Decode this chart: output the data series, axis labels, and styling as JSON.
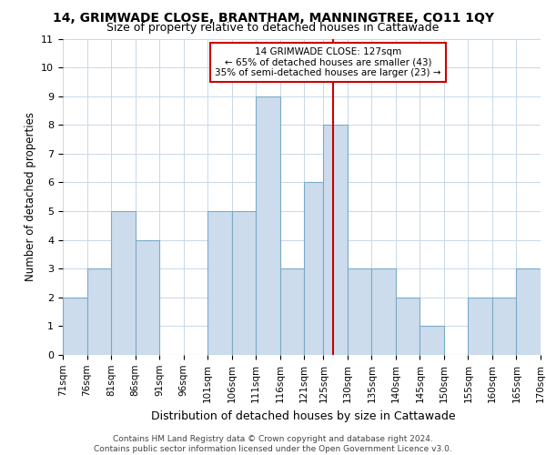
{
  "title1": "14, GRIMWADE CLOSE, BRANTHAM, MANNINGTREE, CO11 1QY",
  "title2": "Size of property relative to detached houses in Cattawade",
  "xlabel": "Distribution of detached houses by size in Cattawade",
  "ylabel": "Number of detached properties",
  "bin_edges": [
    71,
    76,
    81,
    86,
    91,
    96,
    101,
    106,
    111,
    116,
    121,
    125,
    130,
    135,
    140,
    145,
    150,
    155,
    160,
    165,
    170
  ],
  "counts": [
    2,
    3,
    5,
    4,
    0,
    0,
    5,
    5,
    9,
    3,
    6,
    8,
    3,
    3,
    2,
    1,
    0,
    2,
    2,
    3
  ],
  "tick_labels": [
    "71sqm",
    "76sqm",
    "81sqm",
    "86sqm",
    "91sqm",
    "96sqm",
    "101sqm",
    "106sqm",
    "111sqm",
    "116sqm",
    "121sqm",
    "125sqm",
    "130sqm",
    "135sqm",
    "140sqm",
    "145sqm",
    "150sqm",
    "155sqm",
    "160sqm",
    "165sqm",
    "170sqm"
  ],
  "marker_value": 127,
  "bar_color": "#ccdcec",
  "bar_edge_color": "#7aaac8",
  "marker_color": "#cc0000",
  "annotation_text": "14 GRIMWADE CLOSE: 127sqm\n← 65% of detached houses are smaller (43)\n35% of semi-detached houses are larger (23) →",
  "annotation_box_color": "#cc0000",
  "ylim": [
    0,
    11
  ],
  "yticks": [
    0,
    1,
    2,
    3,
    4,
    5,
    6,
    7,
    8,
    9,
    10,
    11
  ],
  "footer_text": "Contains HM Land Registry data © Crown copyright and database right 2024.\nContains public sector information licensed under the Open Government Licence v3.0.",
  "bg_color": "#ffffff",
  "grid_color": "#c8d8e8"
}
